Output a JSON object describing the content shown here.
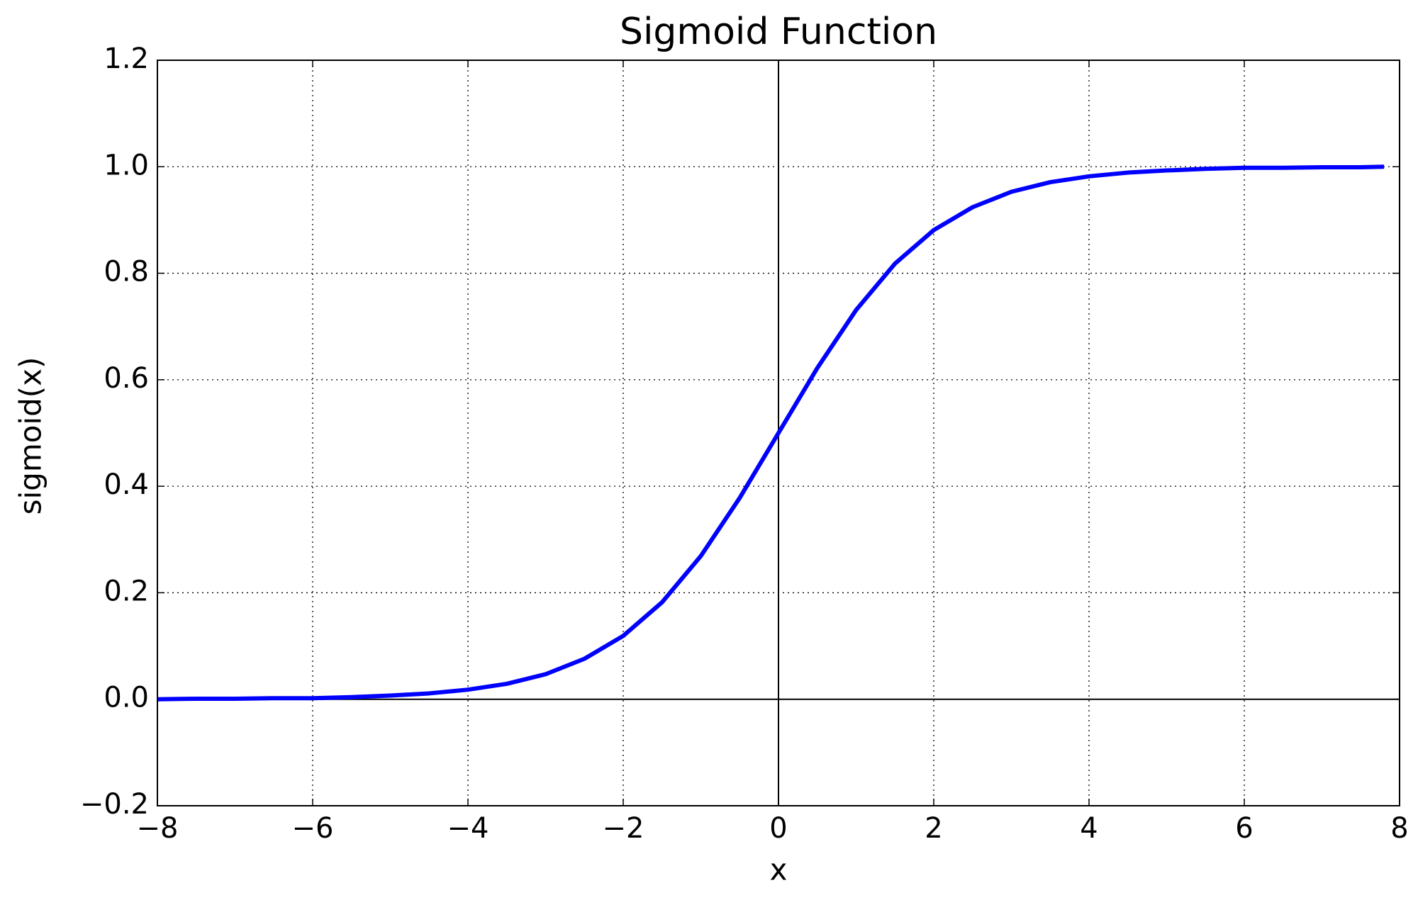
{
  "chart_data": {
    "type": "line",
    "title": "Sigmoid Function",
    "x_label": "x",
    "y_label": "sigmoid(x)",
    "x": [
      -8,
      -7.5,
      -7,
      -6.5,
      -6,
      -5.5,
      -5,
      -4.5,
      -4,
      -3.5,
      -3,
      -2.5,
      -2,
      -1.5,
      -1,
      -0.5,
      0,
      0.5,
      1,
      1.5,
      2,
      2.5,
      3,
      3.5,
      4,
      4.5,
      5,
      5.5,
      6,
      6.5,
      7,
      7.5,
      7.8
    ],
    "series": [
      {
        "color": "#0000ff",
        "values": [
          0.0,
          0.001,
          0.001,
          0.002,
          0.002,
          0.004,
          0.007,
          0.011,
          0.018,
          0.029,
          0.047,
          0.076,
          0.119,
          0.182,
          0.269,
          0.378,
          0.5,
          0.622,
          0.731,
          0.818,
          0.881,
          0.924,
          0.953,
          0.971,
          0.982,
          0.989,
          0.993,
          0.996,
          0.998,
          0.998,
          0.999,
          0.999,
          1.0
        ]
      }
    ],
    "xlim": [
      -8,
      8
    ],
    "xticks": [
      {
        "value": -8,
        "label": "−8"
      },
      {
        "value": -6,
        "label": "−6"
      },
      {
        "value": -4,
        "label": "−4"
      },
      {
        "value": -2,
        "label": "−2"
      },
      0,
      2,
      4,
      6,
      8
    ],
    "ylim": [
      -0.2,
      1.2
    ],
    "yticks": [
      {
        "value": -0.2,
        "label": "−0.2"
      },
      {
        "value": 0,
        "label": "0.0"
      },
      0.2,
      0.4,
      0.6,
      0.8,
      {
        "value": 1,
        "label": "1.0"
      },
      1.2
    ],
    "grid": true,
    "zero_lines": true
  }
}
